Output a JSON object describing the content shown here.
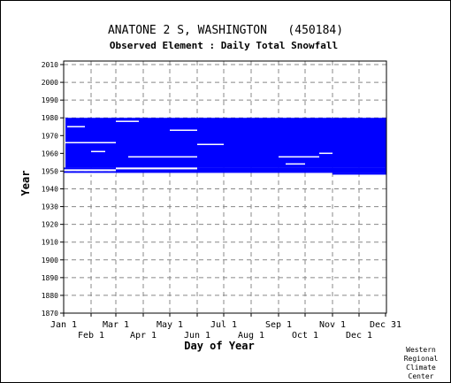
{
  "chart_data": {
    "type": "heatmap",
    "title": "ANATONE 2 S, WASHINGTON   (450184)",
    "subtitle": "Observed Element : Daily Total Snowfall",
    "xlabel": "Day of Year",
    "ylabel": "Year",
    "credit": [
      "Western",
      "Regional",
      "Climate",
      "Center"
    ],
    "x_range": [
      1,
      366
    ],
    "ylim": [
      1870,
      2012
    ],
    "grid": true,
    "x_ticks_top": [
      {
        "label": "Jan 1",
        "day": 1
      },
      {
        "label": "Mar 1",
        "day": 60
      },
      {
        "label": "May 1",
        "day": 121
      },
      {
        "label": "Jul 1",
        "day": 182
      },
      {
        "label": "Sep 1",
        "day": 244
      },
      {
        "label": "Nov 1",
        "day": 305
      },
      {
        "label": "Dec 31",
        "day": 365
      }
    ],
    "x_ticks_bottom": [
      {
        "label": "Feb 1",
        "day": 32
      },
      {
        "label": "Apr 1",
        "day": 91
      },
      {
        "label": "Jun 1",
        "day": 152
      },
      {
        "label": "Aug 1",
        "day": 213
      },
      {
        "label": "Oct 1",
        "day": 274
      },
      {
        "label": "Dec 1",
        "day": 335
      }
    ],
    "y_ticks": [
      1870,
      1880,
      1890,
      1900,
      1910,
      1920,
      1930,
      1940,
      1950,
      1960,
      1970,
      1980,
      1990,
      2000,
      2010
    ],
    "colors": {
      "data": "#0000ff",
      "grid": "#888888",
      "axis": "#000000"
    },
    "series": [
      {
        "data_blocks": [
          {
            "x0": 1,
            "x1": 366,
            "y0": 1952,
            "y1": 1980
          },
          {
            "x0": 1,
            "x1": 60,
            "y0": 1951,
            "y1": 1952
          },
          {
            "x0": 1,
            "x1": 60,
            "y0": 1949,
            "y1": 1950
          },
          {
            "x0": 60,
            "x1": 366,
            "y0": 1949,
            "y1": 1952
          },
          {
            "x0": 305,
            "x1": 366,
            "y0": 1948,
            "y1": 1949
          }
        ],
        "missing": [
          {
            "x0": 1,
            "x1": 60,
            "y0": 1948,
            "y1": 1949
          },
          {
            "x0": 1,
            "x1": 60,
            "y0": 1950,
            "y1": 1951
          },
          {
            "x0": 60,
            "x1": 152,
            "y0": 1951,
            "y1": 1952
          },
          {
            "x0": 1,
            "x1": 60,
            "y0": 1966,
            "y1": 1966.4
          },
          {
            "x0": 60,
            "x1": 86,
            "y0": 1978,
            "y1": 1978.4
          },
          {
            "x0": 121,
            "x1": 152,
            "y0": 1973,
            "y1": 1973.4
          },
          {
            "x0": 152,
            "x1": 182,
            "y0": 1965,
            "y1": 1965.4
          },
          {
            "x0": 74,
            "x1": 152,
            "y0": 1958,
            "y1": 1958.4
          },
          {
            "x0": 244,
            "x1": 290,
            "y0": 1958,
            "y1": 1958.4
          },
          {
            "x0": 290,
            "x1": 305,
            "y0": 1960,
            "y1": 1960.4
          },
          {
            "x0": 252,
            "x1": 274,
            "y0": 1954,
            "y1": 1954.4
          },
          {
            "x0": 5,
            "x1": 25,
            "y0": 1975,
            "y1": 1975.4
          },
          {
            "x0": 32,
            "x1": 48,
            "y0": 1961,
            "y1": 1961.4
          },
          {
            "x0": 1,
            "x1": 3,
            "y0": 1952,
            "y1": 1980
          }
        ]
      }
    ]
  }
}
